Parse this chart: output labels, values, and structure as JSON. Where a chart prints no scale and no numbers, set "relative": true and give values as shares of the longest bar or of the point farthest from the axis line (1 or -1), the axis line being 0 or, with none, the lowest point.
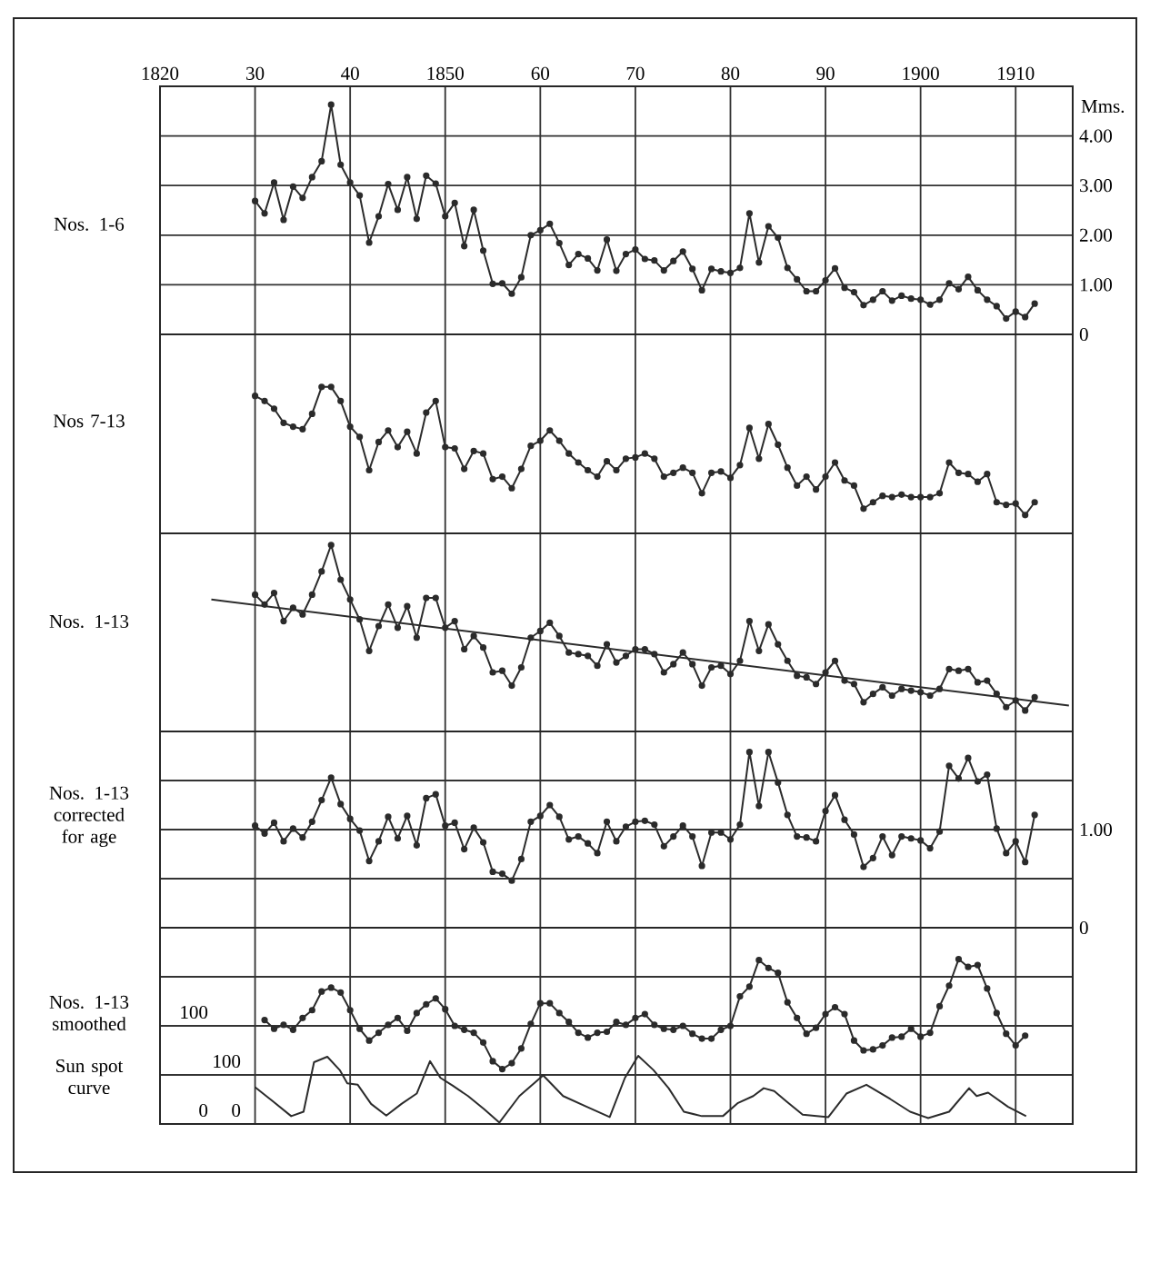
{
  "chart_data": [
    {
      "type": "line",
      "title": "Nos. 1-6",
      "ylabel": "Mms.",
      "xlim": [
        1820,
        1916
      ],
      "xticks": [
        1820,
        {
          "value": 1830,
          "label": "30"
        },
        {
          "value": 1840,
          "label": "40"
        },
        1850,
        {
          "value": 1860,
          "label": "60"
        },
        {
          "value": 1870,
          "label": "70"
        },
        {
          "value": 1880,
          "label": "80"
        },
        {
          "value": 1890,
          "label": "90"
        },
        1900,
        1910
      ],
      "ylim": [
        0,
        5
      ],
      "yticks": [
        0,
        {
          "value": 1,
          "label": "1.00"
        },
        {
          "value": 2,
          "label": "2.00"
        },
        {
          "value": 3,
          "label": "3.00"
        },
        {
          "value": 4,
          "label": "4.00"
        }
      ],
      "grid": true,
      "marker": "circle",
      "line_style": "solid",
      "x": [
        1830,
        1831,
        1832,
        1833,
        1834,
        1835,
        1836,
        1837,
        1838,
        1839,
        1840,
        1841,
        1842,
        1843,
        1844,
        1845,
        1846,
        1847,
        1848,
        1849,
        1850,
        1851,
        1852,
        1853,
        1854,
        1855,
        1856,
        1857,
        1858,
        1859,
        1860,
        1861,
        1862,
        1863,
        1864,
        1865,
        1866,
        1867,
        1868,
        1869,
        1870,
        1871,
        1872,
        1873,
        1874,
        1875,
        1876,
        1877,
        1878,
        1879,
        1880,
        1881,
        1882,
        1883,
        1884,
        1885,
        1886,
        1887,
        1888,
        1889,
        1890,
        1891,
        1892,
        1893,
        1894,
        1895,
        1896,
        1897,
        1898,
        1899,
        1900,
        1901,
        1902,
        1903,
        1904,
        1905,
        1906,
        1907,
        1908,
        1909,
        1910,
        1911,
        1912
      ],
      "series": [
        {
          "color": "#2b2b2b",
          "values": [
            2.69,
            2.44,
            3.06,
            2.31,
            2.98,
            2.75,
            3.17,
            3.49,
            4.63,
            3.42,
            3.06,
            2.8,
            1.85,
            2.38,
            3.03,
            2.51,
            3.17,
            2.33,
            3.2,
            3.04,
            2.38,
            2.65,
            1.78,
            2.51,
            1.69,
            1.02,
            1.03,
            0.82,
            1.15,
            2.0,
            2.1,
            2.23,
            1.84,
            1.4,
            1.62,
            1.53,
            1.29,
            1.91,
            1.28,
            1.62,
            1.71,
            1.52,
            1.49,
            1.29,
            1.48,
            1.67,
            1.32,
            0.89,
            1.32,
            1.27,
            1.24,
            1.34,
            2.44,
            1.45,
            2.18,
            1.95,
            1.34,
            1.11,
            0.87,
            0.87,
            1.09,
            1.33,
            0.94,
            0.85,
            0.59,
            0.7,
            0.87,
            0.68,
            0.78,
            0.72,
            0.7,
            0.6,
            0.7,
            1.03,
            0.91,
            1.16,
            0.89,
            0.7,
            0.57,
            0.32,
            0.46,
            0.35,
            0.62
          ]
        }
      ]
    },
    {
      "type": "line",
      "title": "Nos 7-13",
      "relative": true,
      "xlim": [
        1820,
        1916
      ],
      "xticks": [
        1820,
        1830,
        1840,
        1850,
        1860,
        1870,
        1880,
        1890,
        1900,
        1910
      ],
      "grid": "x",
      "tick_labels": false,
      "marker": "circle",
      "line_style": "solid",
      "x": [
        1830,
        1831,
        1832,
        1833,
        1834,
        1835,
        1836,
        1837,
        1838,
        1839,
        1840,
        1841,
        1842,
        1843,
        1844,
        1845,
        1846,
        1847,
        1848,
        1849,
        1850,
        1851,
        1852,
        1853,
        1854,
        1855,
        1856,
        1857,
        1858,
        1859,
        1860,
        1861,
        1862,
        1863,
        1864,
        1865,
        1866,
        1867,
        1868,
        1869,
        1870,
        1871,
        1872,
        1873,
        1874,
        1875,
        1876,
        1877,
        1878,
        1879,
        1880,
        1881,
        1882,
        1883,
        1884,
        1885,
        1886,
        1887,
        1888,
        1889,
        1890,
        1891,
        1892,
        1893,
        1894,
        1895,
        1896,
        1897,
        1898,
        1899,
        1900,
        1901,
        1902,
        1903,
        1904,
        1905,
        1906,
        1907,
        1908,
        1909,
        1910,
        1911,
        1912
      ],
      "series": [
        {
          "color": "#2b2b2b",
          "values": [
            0.93,
            0.89,
            0.83,
            0.72,
            0.69,
            0.67,
            0.79,
            1,
            1,
            0.89,
            0.69,
            0.61,
            0.35,
            0.57,
            0.66,
            0.53,
            0.65,
            0.48,
            0.8,
            0.89,
            0.53,
            0.52,
            0.36,
            0.5,
            0.48,
            0.28,
            0.3,
            0.21,
            0.36,
            0.54,
            0.58,
            0.66,
            0.58,
            0.48,
            0.41,
            0.35,
            0.3,
            0.42,
            0.35,
            0.44,
            0.45,
            0.48,
            0.44,
            0.3,
            0.33,
            0.37,
            0.33,
            0.17,
            0.33,
            0.34,
            0.29,
            0.39,
            0.68,
            0.44,
            0.71,
            0.55,
            0.37,
            0.23,
            0.3,
            0.2,
            0.3,
            0.41,
            0.27,
            0.23,
            0.05,
            0.1,
            0.15,
            0.14,
            0.16,
            0.14,
            0.14,
            0.14,
            0.17,
            0.41,
            0.33,
            0.32,
            0.26,
            0.32,
            0.1,
            0.08,
            0.09,
            0,
            0.1
          ]
        }
      ]
    },
    {
      "type": "line",
      "title": "Nos. 1-13",
      "relative": true,
      "xlim": [
        1820,
        1916
      ],
      "xticks": [
        1820,
        1830,
        1840,
        1850,
        1860,
        1870,
        1880,
        1890,
        1900,
        1910
      ],
      "grid": "x",
      "tick_labels": false,
      "marker": "circle",
      "line_style": "solid",
      "x": [
        1830,
        1831,
        1832,
        1833,
        1834,
        1835,
        1836,
        1837,
        1838,
        1839,
        1840,
        1841,
        1842,
        1843,
        1844,
        1845,
        1846,
        1847,
        1848,
        1849,
        1850,
        1851,
        1852,
        1853,
        1854,
        1855,
        1856,
        1857,
        1858,
        1859,
        1860,
        1861,
        1862,
        1863,
        1864,
        1865,
        1866,
        1867,
        1868,
        1869,
        1870,
        1871,
        1872,
        1873,
        1874,
        1875,
        1876,
        1877,
        1878,
        1879,
        1880,
        1881,
        1882,
        1883,
        1884,
        1885,
        1886,
        1887,
        1888,
        1889,
        1890,
        1891,
        1892,
        1893,
        1894,
        1895,
        1896,
        1897,
        1898,
        1899,
        1900,
        1901,
        1902,
        1903,
        1904,
        1905,
        1906,
        1907,
        1908,
        1909,
        1910,
        1911,
        1912
      ],
      "series": [
        {
          "color": "#2b2b2b",
          "values": [
            0.7,
            0.64,
            0.71,
            0.54,
            0.62,
            0.58,
            0.7,
            0.84,
            1,
            0.79,
            0.67,
            0.55,
            0.36,
            0.51,
            0.64,
            0.5,
            0.63,
            0.44,
            0.68,
            0.68,
            0.5,
            0.54,
            0.37,
            0.45,
            0.38,
            0.23,
            0.24,
            0.15,
            0.26,
            0.44,
            0.48,
            0.53,
            0.45,
            0.35,
            0.34,
            0.33,
            0.27,
            0.4,
            0.29,
            0.33,
            0.37,
            0.37,
            0.34,
            0.23,
            0.28,
            0.35,
            0.28,
            0.15,
            0.26,
            0.27,
            0.22,
            0.3,
            0.54,
            0.36,
            0.52,
            0.4,
            0.3,
            0.21,
            0.2,
            0.16,
            0.23,
            0.3,
            0.18,
            0.16,
            0.05,
            0.1,
            0.14,
            0.09,
            0.13,
            0.12,
            0.11,
            0.09,
            0.13,
            0.25,
            0.24,
            0.25,
            0.17,
            0.18,
            0.1,
            0.02,
            0.06,
            0,
            0.08
          ]
        },
        {
          "type": "line",
          "marker": "none",
          "color": "#2b2b2b",
          "x": [
            1825.4,
            1915.6
          ],
          "values": [
            0.67,
            0.03
          ]
        }
      ]
    },
    {
      "type": "line",
      "title": "Nos. 1-13 corrected for age",
      "xlim": [
        1820,
        1916
      ],
      "xticks": [
        1820,
        1830,
        1840,
        1850,
        1860,
        1870,
        1880,
        1890,
        1900,
        1910
      ],
      "ylim": [
        0,
        2
      ],
      "yticks": [
        0,
        {
          "value": 0.5,
          "label": null
        },
        {
          "value": 1,
          "label": "1.00"
        },
        {
          "value": 1.5,
          "label": null
        }
      ],
      "grid": true,
      "tick_labels": "y",
      "marker": "circle",
      "line_style": "solid",
      "x": [
        1830,
        1831,
        1832,
        1833,
        1834,
        1835,
        1836,
        1837,
        1838,
        1839,
        1840,
        1841,
        1842,
        1843,
        1844,
        1845,
        1846,
        1847,
        1848,
        1849,
        1850,
        1851,
        1852,
        1853,
        1854,
        1855,
        1856,
        1857,
        1858,
        1859,
        1860,
        1861,
        1862,
        1863,
        1864,
        1865,
        1866,
        1867,
        1868,
        1869,
        1870,
        1871,
        1872,
        1873,
        1874,
        1875,
        1876,
        1877,
        1878,
        1879,
        1880,
        1881,
        1882,
        1883,
        1884,
        1885,
        1886,
        1887,
        1888,
        1889,
        1890,
        1891,
        1892,
        1893,
        1894,
        1895,
        1896,
        1897,
        1898,
        1899,
        1900,
        1901,
        1902,
        1903,
        1904,
        1905,
        1906,
        1907,
        1908,
        1909,
        1910,
        1911,
        1912
      ],
      "series": [
        {
          "color": "#2b2b2b",
          "values": [
            1.04,
            0.96,
            1.07,
            0.88,
            1.01,
            0.92,
            1.08,
            1.3,
            1.53,
            1.26,
            1.11,
            0.99,
            0.68,
            0.88,
            1.13,
            0.91,
            1.14,
            0.84,
            1.32,
            1.36,
            1.04,
            1.07,
            0.8,
            1.02,
            0.87,
            0.57,
            0.55,
            0.48,
            0.7,
            1.08,
            1.14,
            1.25,
            1.13,
            0.9,
            0.93,
            0.86,
            0.76,
            1.08,
            0.88,
            1.03,
            1.08,
            1.09,
            1.05,
            0.83,
            0.93,
            1.04,
            0.93,
            0.63,
            0.97,
            0.97,
            0.9,
            1.05,
            1.79,
            1.24,
            1.79,
            1.48,
            1.15,
            0.93,
            0.92,
            0.88,
            1.19,
            1.35,
            1.1,
            0.95,
            0.62,
            0.71,
            0.93,
            0.74,
            0.93,
            0.91,
            0.89,
            0.81,
            0.98,
            1.65,
            1.52,
            1.73,
            1.49,
            1.56,
            1.01,
            0.76,
            0.88,
            0.67,
            1.15
          ]
        }
      ]
    },
    {
      "type": "line",
      "title": "Nos. 1-13 smoothed",
      "xlim": [
        1820,
        1916
      ],
      "xticks": [
        1820,
        1830,
        1840,
        1850,
        1860,
        1870,
        1880,
        1890,
        1900,
        1910
      ],
      "ylim": [
        0,
        200
      ],
      "yticks": [
        0,
        {
          "value": 50,
          "label": null
        },
        100,
        {
          "value": 150,
          "label": null
        }
      ],
      "grid": true,
      "tick_labels": "y",
      "marker": "circle",
      "line_style": "solid",
      "x": [
        1831,
        1832,
        1833,
        1834,
        1835,
        1836,
        1837,
        1838,
        1839,
        1840,
        1841,
        1842,
        1843,
        1844,
        1845,
        1846,
        1847,
        1848,
        1849,
        1850,
        1851,
        1852,
        1853,
        1854,
        1855,
        1856,
        1857,
        1858,
        1859,
        1860,
        1861,
        1862,
        1863,
        1864,
        1865,
        1866,
        1867,
        1868,
        1869,
        1870,
        1871,
        1872,
        1873,
        1874,
        1875,
        1876,
        1877,
        1878,
        1879,
        1880,
        1881,
        1882,
        1883,
        1884,
        1885,
        1886,
        1887,
        1888,
        1889,
        1890,
        1891,
        1892,
        1893,
        1894,
        1895,
        1896,
        1897,
        1898,
        1899,
        1900,
        1901,
        1902,
        1903,
        1904,
        1905,
        1906,
        1907,
        1908,
        1909,
        1910,
        1911
      ],
      "series": [
        {
          "color": "#2b2b2b",
          "values": [
            106,
            97,
            101,
            96,
            108,
            116,
            135,
            139,
            134,
            116,
            97,
            85,
            93,
            101,
            108,
            95,
            113,
            122,
            128,
            117,
            100,
            96,
            93,
            83,
            64,
            56,
            62,
            77,
            102,
            123,
            123,
            113,
            104,
            93,
            88,
            93,
            94,
            104,
            101,
            108,
            112,
            101,
            97,
            96,
            100,
            92,
            87,
            87,
            96,
            100,
            130,
            140,
            167,
            159,
            154,
            124,
            108,
            92,
            98,
            112,
            119,
            112,
            85,
            75,
            76,
            80,
            88,
            89,
            97,
            89,
            93,
            120,
            141,
            168,
            160,
            162,
            138,
            113,
            92,
            80,
            90
          ]
        }
      ]
    },
    {
      "type": "line",
      "title": "Sun spot curve",
      "xlim": [
        1820,
        1916
      ],
      "ylim": [
        0,
        400
      ],
      "yticks": [
        0,
        100
      ],
      "tick_labels": "y",
      "line_style": "solid",
      "x": [
        1830.0,
        1831.9,
        1833.8,
        1835.1,
        1836.2,
        1837.6,
        1838.9,
        1839.7,
        1840.8,
        1842.2,
        1843.8,
        1845.4,
        1847.0,
        1848.4,
        1849.5,
        1850.8,
        1852.4,
        1854.1,
        1855.7,
        1857.8,
        1860.3,
        1862.4,
        1864.9,
        1867.3,
        1868.9,
        1870.3,
        1871.9,
        1873.5,
        1875.1,
        1877.0,
        1879.2,
        1880.8,
        1882.4,
        1883.5,
        1884.6,
        1885.9,
        1887.6,
        1890.3,
        1892.2,
        1894.3,
        1896.8,
        1898.9,
        1900.8,
        1903.0,
        1905.1,
        1905.9,
        1907.1,
        1909.2,
        1911.1
      ],
      "series": [
        {
          "color": "#2b2b2b",
          "values": [
            75,
            46,
            16,
            25,
            126,
            137,
            110,
            83,
            80,
            41,
            17,
            41,
            62,
            128,
            94,
            78,
            57,
            30,
            3,
            57,
            99,
            57,
            35,
            14,
            94,
            139,
            110,
            73,
            25,
            16,
            16,
            43,
            57,
            73,
            67,
            46,
            19,
            14,
            62,
            80,
            51,
            25,
            12,
            25,
            73,
            57,
            64,
            35,
            16
          ]
        }
      ]
    }
  ]
}
